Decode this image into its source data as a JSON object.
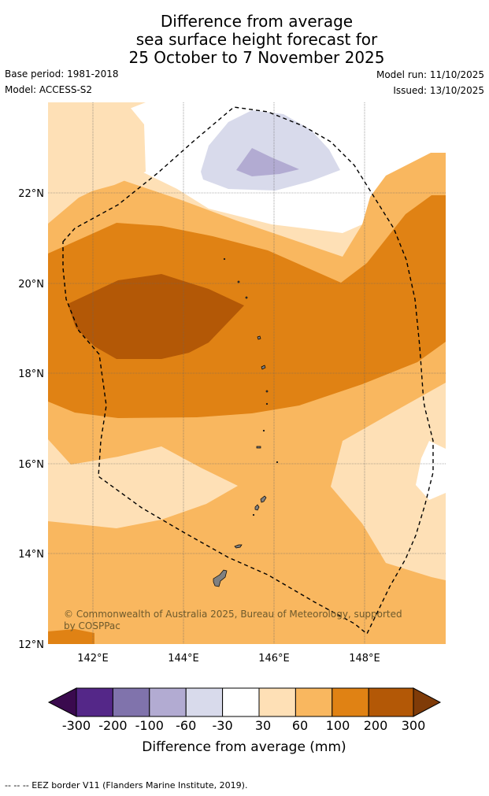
{
  "title": {
    "line1": "Difference from average",
    "line2": "sea surface height forecast for",
    "line3": "25 October to 7 November 2025"
  },
  "meta": {
    "base_period": "Base period: 1981-2018",
    "model": "Model: ACCESS-S2",
    "model_run": "Model run: 11/10/2025",
    "issued": "Issued: 13/10/2025"
  },
  "map": {
    "lat_labels": [
      "22°N",
      "20°N",
      "18°N",
      "16°N",
      "14°N",
      "12°N"
    ],
    "lon_labels": [
      "142°E",
      "144°E",
      "146°E",
      "148°E"
    ],
    "copyright_line1": "© Commonwealth of Australia 2025, Bureau of Meteorology, supported",
    "copyright_line2": "by COSPPac"
  },
  "legend": {
    "ticks": [
      "-300",
      "-200",
      "-100",
      "-60",
      "-30",
      "30",
      "60",
      "100",
      "200",
      "300"
    ],
    "label": "Difference from average (mm)",
    "colors": {
      "below_-300": "#3a0a4e",
      "-300_-200": "#542788",
      "-200_-100": "#8073ac",
      "-100_-60": "#b2abd2",
      "-60_-30": "#d8daeb",
      "-30_30": "#ffffff",
      "30_60": "#fee0b6",
      "60_100": "#f9b75f",
      "100_200": "#e08214",
      "200_300": "#b35806",
      "above_300": "#7f3b08"
    }
  },
  "footnote": "--  --  -- EEZ border V11 (Flanders Marine Institute, 2019)."
}
